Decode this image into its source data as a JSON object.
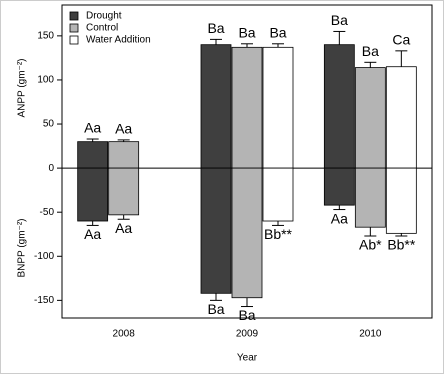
{
  "chart_data": {
    "type": "bar",
    "x_label": "Year",
    "y_label_top": "ANPP (gm⁻²)",
    "y_label_bottom": "BNPP (gm⁻²)",
    "categories": [
      "2008",
      "2009",
      "2010"
    ],
    "ylim": [
      -170,
      185
    ],
    "yticks": [
      150,
      100,
      50,
      0,
      -50,
      -100,
      -150
    ],
    "legend": "top-left",
    "series": [
      {
        "name": "Drought",
        "color": "#3f3f3f",
        "anpp": [
          30,
          140,
          140
        ],
        "anpp_err": [
          3,
          6,
          15
        ],
        "bnpp": [
          -60,
          -142,
          -42
        ],
        "bnpp_err": [
          5,
          8,
          5
        ],
        "anpp_labels": [
          "Aa",
          "Ba",
          "Ba"
        ],
        "bnpp_labels": [
          "Aa",
          "Ba",
          "Aa"
        ]
      },
      {
        "name": "Control",
        "color": "#b4b4b4",
        "anpp": [
          30,
          137,
          114
        ],
        "anpp_err": [
          2,
          4,
          6
        ],
        "bnpp": [
          -53,
          -147,
          -67
        ],
        "bnpp_err": [
          5,
          10,
          10
        ],
        "anpp_labels": [
          "Aa",
          "Ba",
          "Ba"
        ],
        "bnpp_labels": [
          "Aa",
          "Ba",
          "Ab*"
        ]
      },
      {
        "name": "Water Addition",
        "color": "#ffffff",
        "anpp": [
          null,
          137,
          115
        ],
        "anpp_err": [
          null,
          4,
          18
        ],
        "bnpp": [
          null,
          -60,
          -74
        ],
        "bnpp_err": [
          null,
          5,
          3
        ],
        "anpp_labels": [
          null,
          "Ba",
          "Ca"
        ],
        "bnpp_labels": [
          null,
          "Bb**",
          "Bb**"
        ]
      }
    ]
  }
}
